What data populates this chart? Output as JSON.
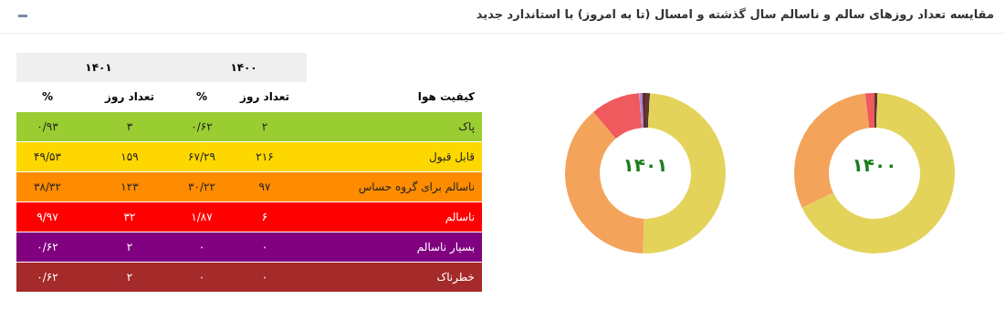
{
  "chart_data": [
    {
      "type": "other",
      "title": "مقایسه تعداد روزهای سالم و ناسالم سال گذشته و امسال (تا به امروز) با استاندارد جدید",
      "annotations": [
        "۱۴۰۰",
        "۱۴۰۱",
        "کیفیت هوا",
        "تعداد روز",
        "%",
        "تعداد روز",
        "%",
        "پاک",
        "۲",
        "۰/۶۲",
        "۳",
        "۰/۹۳",
        "قابل قبول",
        "۲۱۶",
        "۶۷/۲۹",
        "۱۵۹",
        "۴۹/۵۳",
        "ناسالم برای گروه حساس",
        "۹۷",
        "۳۰/۲۲",
        "۱۲۳",
        "۳۸/۳۲",
        "ناسالم",
        "۶",
        "۱/۸۷",
        "۳۲",
        "۹/۹۷",
        "بسیار ناسالم",
        "۰",
        "۰",
        "۲",
        "۰/۶۲",
        "خطرناک",
        "۰",
        "۰",
        "۲",
        "۰/۶۲"
      ]
    },
    {
      "type": "donut",
      "title": "۱۴۰۰",
      "categories": [
        null,
        null,
        null,
        null,
        null,
        null
      ],
      "values": [
        0.62,
        67.29,
        30.22,
        1.87,
        0,
        0
      ],
      "colors": [
        "#5c3b2e",
        "#e3d35a",
        "#f4a35a",
        "#ee5a5e",
        "#a68bd0",
        "#6e2430"
      ]
    },
    {
      "type": "donut",
      "title": "۱۴۰۱",
      "categories": [
        null,
        null,
        null,
        null,
        null,
        null
      ],
      "values": [
        0.93,
        49.53,
        38.32,
        9.97,
        0.62,
        0.62
      ],
      "colors": [
        "#5c3b2e",
        "#e3d35a",
        "#f4a35a",
        "#ee5a5e",
        "#a68bd0",
        "#6e2430"
      ]
    }
  ]
}
